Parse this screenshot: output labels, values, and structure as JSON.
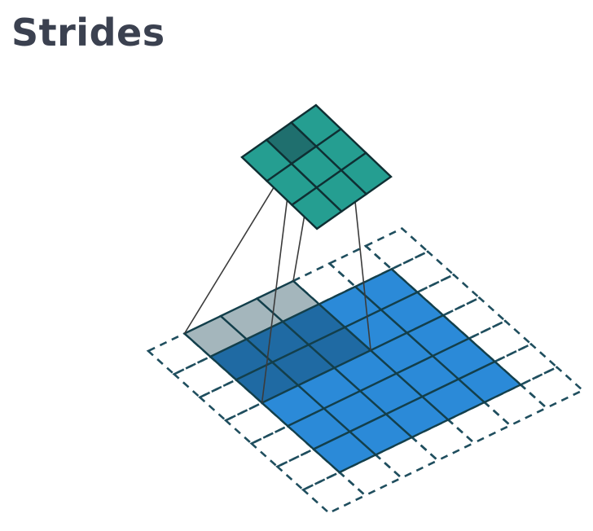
{
  "title": "Strides",
  "colors": {
    "title": "#3b4150",
    "input": "#2b8ad8",
    "input_under_kernel": "#1f6aa3",
    "kernel_outside_input": "#a4b6bc",
    "output": "#259e91",
    "output_active": "#1f6f6e",
    "cell_border": "#133f4b",
    "padding_border": "#1f4e5e"
  },
  "grid": {
    "padded_size": 7,
    "padding": 1,
    "kernel_size": 3,
    "kernel_origin": [
      0,
      1
    ],
    "output_size": 3,
    "active_output_cell": [
      0,
      1
    ]
  }
}
